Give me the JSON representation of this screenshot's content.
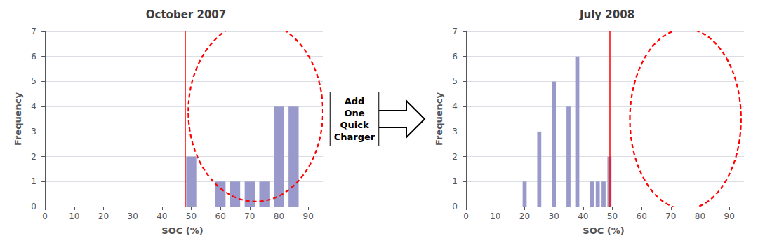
{
  "chart_data": [
    {
      "type": "bar",
      "title": "October 2007",
      "xlabel": "SOC (%)",
      "ylabel": "Frequency",
      "x": [
        50,
        60,
        65,
        70,
        75,
        80,
        85
      ],
      "values": [
        2,
        1,
        1,
        1,
        1,
        4,
        4
      ],
      "color": "#9999cc",
      "xlim": [
        -1,
        95
      ],
      "xticks": [
        0,
        10,
        20,
        30,
        40,
        50,
        60,
        70,
        80,
        90
      ],
      "ylim": [
        0,
        7
      ],
      "yticks": [
        0,
        1,
        2,
        3,
        4,
        5,
        6,
        7
      ],
      "grid": true,
      "vline": {
        "x": 48,
        "color": "red"
      },
      "ellipse": {
        "cx": 72,
        "cy": 3.8,
        "rx": 23,
        "ry": 3.6,
        "color": "red"
      },
      "annotation": "Add\nOne\nQuick\nCharger"
    },
    {
      "type": "bar",
      "title": "July 2008",
      "xlabel": "SOC (%)",
      "ylabel": "Frequency",
      "x": [
        20,
        25,
        30,
        35,
        38,
        43,
        45,
        47,
        49
      ],
      "values": [
        1,
        3,
        5,
        4,
        6,
        1,
        1,
        1,
        2
      ],
      "color": "#9999cc",
      "xlim": [
        -1,
        95
      ],
      "xticks": [
        0,
        10,
        20,
        30,
        40,
        50,
        60,
        70,
        80,
        90
      ],
      "ylim": [
        0,
        7
      ],
      "yticks": [
        0,
        1,
        2,
        3,
        4,
        5,
        6,
        7
      ],
      "grid": true,
      "vline": {
        "x": 49,
        "color": "red"
      },
      "ellipse": {
        "cx": 75,
        "cy": 3.5,
        "rx": 19,
        "ry": 3.6,
        "color": "red"
      }
    }
  ]
}
